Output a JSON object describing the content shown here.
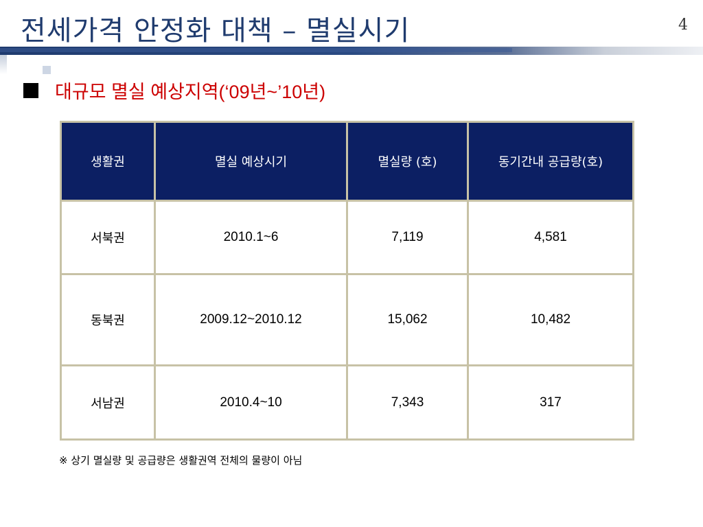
{
  "header": {
    "title": "전세가격 안정화 대책 – 멸실시기",
    "page_number": "4"
  },
  "section": {
    "heading": "대규모 멸실 예상지역(‘09년~’10년)"
  },
  "table": {
    "columns": [
      "생활권",
      "멸실 예상시기",
      "멸실량 (호)",
      "동기간내 공급량(호)"
    ],
    "rows": [
      {
        "region": "서북권",
        "period": "2010.1~6",
        "demolition": "7,119",
        "supply": "4,581"
      },
      {
        "region": "동북권",
        "period": "2009.12~2010.12",
        "demolition": "15,062",
        "supply": "10,482"
      },
      {
        "region": "서남권",
        "period": "2010.4~10",
        "demolition": "7,343",
        "supply": "317"
      }
    ]
  },
  "footnote": "※ 상기 멸실량 및 공급량은 생활권역 전체의 물량이 아님",
  "colors": {
    "title": "#1f3b6e",
    "header_cell": "#0c1f63",
    "border": "#c7c2a6",
    "heading": "#cc0000"
  }
}
